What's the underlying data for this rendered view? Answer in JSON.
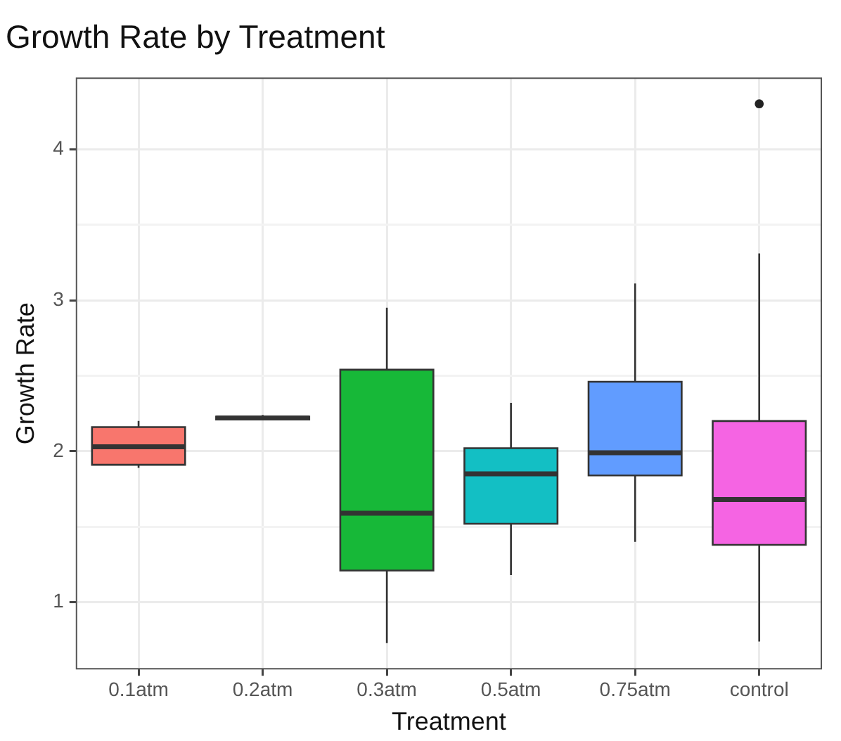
{
  "chart_data": {
    "type": "box",
    "title": "Growth Rate by Treatment",
    "xlabel": "Treatment",
    "ylabel": "Growth Rate",
    "categories": [
      "0.1atm",
      "0.2atm",
      "0.3atm",
      "0.5atm",
      "0.75atm",
      "control"
    ],
    "colors": [
      "#f8766d",
      "#b79f00",
      "#17b838",
      "#13bfc4",
      "#619cff",
      "#f564e3"
    ],
    "boxes": [
      {
        "low": 1.89,
        "q1": 1.91,
        "median": 2.03,
        "q3": 2.16,
        "high": 2.2
      },
      {
        "low": 2.21,
        "q1": 2.21,
        "median": 2.22,
        "q3": 2.23,
        "high": 2.24
      },
      {
        "low": 0.73,
        "q1": 1.21,
        "median": 1.59,
        "q3": 2.54,
        "high": 2.95
      },
      {
        "low": 1.18,
        "q1": 1.52,
        "median": 1.85,
        "q3": 2.02,
        "high": 2.32
      },
      {
        "low": 1.4,
        "q1": 1.84,
        "median": 1.99,
        "q3": 2.46,
        "high": 3.11
      },
      {
        "low": 0.74,
        "q1": 1.38,
        "median": 1.68,
        "q3": 2.2,
        "high": 3.31,
        "outliers": [
          4.3
        ]
      }
    ],
    "ylim": [
      0.56,
      4.47
    ],
    "yticks": [
      {
        "value": 1.5,
        "label": null
      },
      {
        "value": 2.5,
        "label": null
      },
      {
        "value": 3.5,
        "label": null
      },
      1,
      2,
      3,
      4
    ],
    "grid": true
  }
}
